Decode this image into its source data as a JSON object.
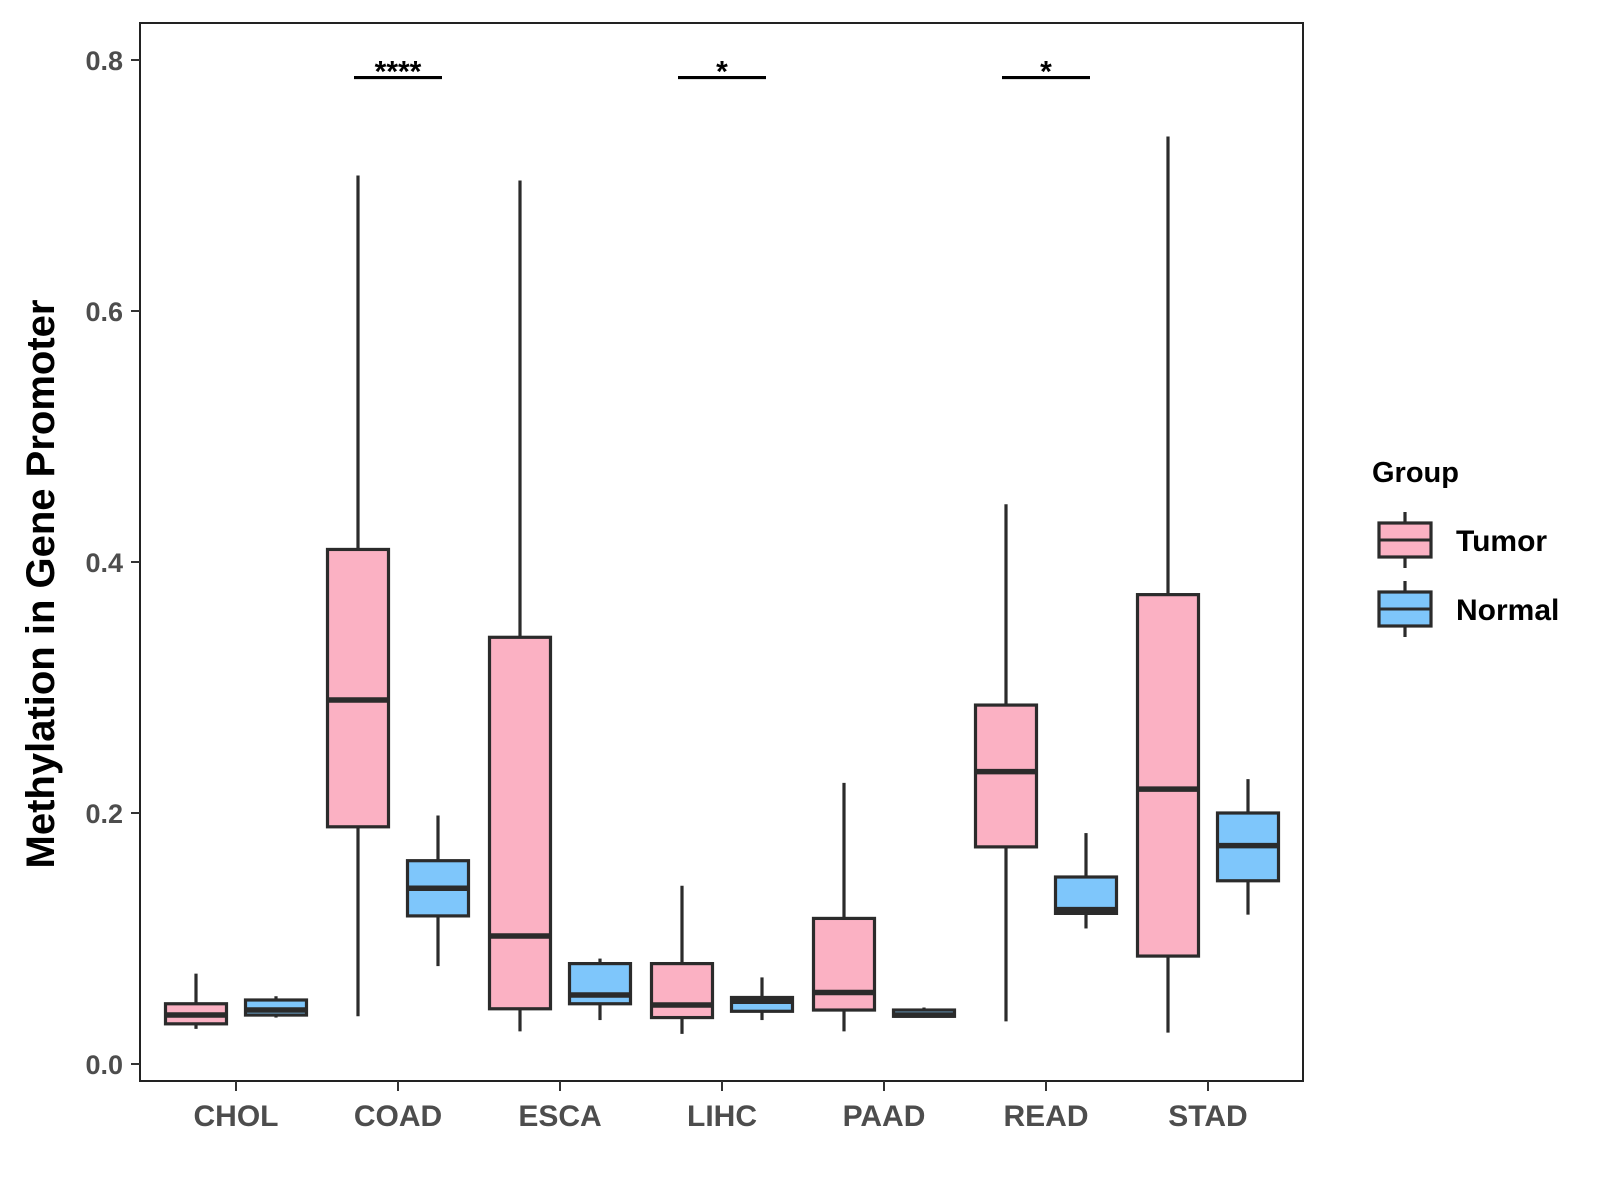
{
  "chart_data": {
    "type": "box",
    "title": "",
    "xlabel": "",
    "ylabel": "Methylation in Gene Promoter",
    "ylim": [
      -0.01,
      0.83
    ],
    "y_ticks": [
      "0.0",
      "0.2",
      "0.4",
      "0.6",
      "0.8"
    ],
    "y_tick_values": [
      0.0,
      0.2,
      0.4,
      0.6,
      0.8
    ],
    "categories": [
      "CHOL",
      "COAD",
      "ESCA",
      "LIHC",
      "PAAD",
      "READ",
      "STAD"
    ],
    "legend": {
      "title": "Group",
      "position": "right",
      "entries": [
        {
          "name": "Tumor",
          "color": "#fbb1c3"
        },
        {
          "name": "Normal",
          "color": "#7ec6fb"
        }
      ]
    },
    "series": [
      {
        "name": "Tumor",
        "color": "#fbb1c3",
        "boxes": [
          {
            "category": "CHOL",
            "min": 0.028,
            "q1": 0.032,
            "median": 0.039,
            "q3": 0.048,
            "max": 0.072
          },
          {
            "category": "COAD",
            "min": 0.038,
            "q1": 0.189,
            "median": 0.29,
            "q3": 0.41,
            "max": 0.708
          },
          {
            "category": "ESCA",
            "min": 0.026,
            "q1": 0.044,
            "median": 0.102,
            "q3": 0.34,
            "max": 0.704
          },
          {
            "category": "LIHC",
            "min": 0.024,
            "q1": 0.037,
            "median": 0.047,
            "q3": 0.08,
            "max": 0.142
          },
          {
            "category": "PAAD",
            "min": 0.026,
            "q1": 0.043,
            "median": 0.057,
            "q3": 0.116,
            "max": 0.224
          },
          {
            "category": "READ",
            "min": 0.034,
            "q1": 0.173,
            "median": 0.233,
            "q3": 0.286,
            "max": 0.446
          },
          {
            "category": "STAD",
            "min": 0.025,
            "q1": 0.086,
            "median": 0.219,
            "q3": 0.374,
            "max": 0.739
          }
        ]
      },
      {
        "name": "Normal",
        "color": "#7ec6fb",
        "boxes": [
          {
            "category": "CHOL",
            "min": 0.037,
            "q1": 0.039,
            "median": 0.043,
            "q3": 0.051,
            "max": 0.054
          },
          {
            "category": "COAD",
            "min": 0.078,
            "q1": 0.118,
            "median": 0.14,
            "q3": 0.162,
            "max": 0.198
          },
          {
            "category": "ESCA",
            "min": 0.035,
            "q1": 0.048,
            "median": 0.055,
            "q3": 0.08,
            "max": 0.084
          },
          {
            "category": "LIHC",
            "min": 0.035,
            "q1": 0.042,
            "median": 0.05,
            "q3": 0.053,
            "max": 0.069
          },
          {
            "category": "PAAD",
            "min": 0.037,
            "q1": 0.038,
            "median": 0.039,
            "q3": 0.043,
            "max": 0.045
          },
          {
            "category": "READ",
            "min": 0.108,
            "q1": 0.12,
            "median": 0.123,
            "q3": 0.149,
            "max": 0.184
          },
          {
            "category": "STAD",
            "min": 0.119,
            "q1": 0.146,
            "median": 0.174,
            "q3": 0.2,
            "max": 0.227
          }
        ]
      }
    ],
    "significance": [
      {
        "category": "COAD",
        "label": "****",
        "y": 0.786
      },
      {
        "category": "LIHC",
        "label": "*",
        "y": 0.786
      },
      {
        "category": "READ",
        "label": "*",
        "y": 0.786
      }
    ]
  }
}
